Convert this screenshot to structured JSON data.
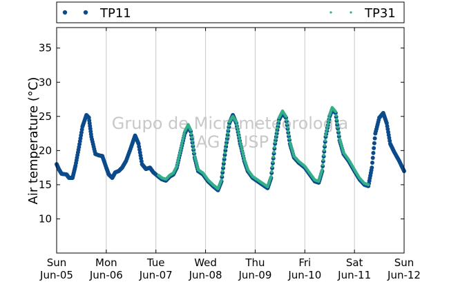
{
  "chart_data": {
    "type": "scatter",
    "title": "",
    "xlabel": "",
    "ylabel": "Air temperature (°C)",
    "ylim": [
      5,
      38
    ],
    "xlim": [
      0,
      7
    ],
    "x_unit": "days from Sun Jun-05 00:00",
    "yticks": [
      10,
      15,
      20,
      25,
      30,
      35
    ],
    "xticks": [
      {
        "x": 0,
        "day": "Sun",
        "date": "Jun-05"
      },
      {
        "x": 1,
        "day": "Mon",
        "date": "Jun-06"
      },
      {
        "x": 2,
        "day": "Tue",
        "date": "Jun-07"
      },
      {
        "x": 3,
        "day": "Wed",
        "date": "Jun-08"
      },
      {
        "x": 4,
        "day": "Thu",
        "date": "Jun-09"
      },
      {
        "x": 5,
        "day": "Fri",
        "date": "Jun-10"
      },
      {
        "x": 6,
        "day": "Sat",
        "date": "Jun-11"
      },
      {
        "x": 7,
        "day": "Sun",
        "date": "Jun-12"
      }
    ],
    "grid": "vertical",
    "legend_position": "top",
    "watermark": [
      "Grupo de Micrometeorologia",
      "IAG / USP"
    ],
    "series": [
      {
        "name": "TP11",
        "color": "#0b4a8b",
        "points": [
          [
            0.0,
            18.0
          ],
          [
            0.05,
            17.2
          ],
          [
            0.1,
            16.6
          ],
          [
            0.2,
            16.5
          ],
          [
            0.25,
            16.0
          ],
          [
            0.32,
            16.0
          ],
          [
            0.38,
            17.8
          ],
          [
            0.45,
            20.5
          ],
          [
            0.52,
            23.5
          ],
          [
            0.6,
            25.2
          ],
          [
            0.65,
            24.8
          ],
          [
            0.7,
            22.0
          ],
          [
            0.78,
            19.5
          ],
          [
            0.85,
            19.3
          ],
          [
            0.92,
            19.2
          ],
          [
            1.0,
            17.5
          ],
          [
            1.05,
            16.5
          ],
          [
            1.12,
            16.0
          ],
          [
            1.18,
            16.8
          ],
          [
            1.25,
            17.0
          ],
          [
            1.32,
            17.5
          ],
          [
            1.4,
            18.5
          ],
          [
            1.5,
            20.5
          ],
          [
            1.58,
            22.2
          ],
          [
            1.65,
            21.0
          ],
          [
            1.72,
            18.0
          ],
          [
            1.8,
            17.3
          ],
          [
            1.88,
            17.5
          ],
          [
            1.95,
            16.8
          ],
          [
            2.05,
            16.2
          ],
          [
            2.12,
            15.8
          ],
          [
            2.2,
            15.6
          ],
          [
            2.28,
            16.2
          ],
          [
            2.35,
            16.5
          ],
          [
            2.42,
            17.5
          ],
          [
            2.5,
            20.0
          ],
          [
            2.58,
            22.5
          ],
          [
            2.65,
            23.5
          ],
          [
            2.7,
            22.8
          ],
          [
            2.78,
            19.0
          ],
          [
            2.85,
            17.0
          ],
          [
            2.95,
            16.5
          ],
          [
            3.05,
            15.5
          ],
          [
            3.15,
            14.8
          ],
          [
            3.25,
            14.2
          ],
          [
            3.32,
            15.5
          ],
          [
            3.4,
            20.0
          ],
          [
            3.48,
            24.0
          ],
          [
            3.55,
            25.2
          ],
          [
            3.62,
            24.0
          ],
          [
            3.7,
            21.0
          ],
          [
            3.78,
            18.5
          ],
          [
            3.85,
            17.0
          ],
          [
            3.95,
            16.0
          ],
          [
            4.05,
            15.5
          ],
          [
            4.15,
            15.0
          ],
          [
            4.25,
            14.5
          ],
          [
            4.32,
            16.0
          ],
          [
            4.4,
            21.0
          ],
          [
            4.48,
            24.5
          ],
          [
            4.55,
            25.5
          ],
          [
            4.62,
            24.8
          ],
          [
            4.7,
            21.0
          ],
          [
            4.78,
            19.0
          ],
          [
            4.88,
            18.2
          ],
          [
            5.0,
            17.5
          ],
          [
            5.1,
            16.5
          ],
          [
            5.2,
            15.5
          ],
          [
            5.28,
            15.3
          ],
          [
            5.35,
            17.0
          ],
          [
            5.42,
            22.0
          ],
          [
            5.5,
            25.0
          ],
          [
            5.55,
            26.0
          ],
          [
            5.62,
            25.5
          ],
          [
            5.7,
            21.5
          ],
          [
            5.78,
            19.5
          ],
          [
            5.88,
            18.5
          ],
          [
            6.0,
            17.0
          ],
          [
            6.1,
            15.8
          ],
          [
            6.2,
            15.0
          ],
          [
            6.28,
            14.8
          ],
          [
            6.35,
            17.5
          ],
          [
            6.42,
            22.5
          ],
          [
            6.5,
            24.8
          ],
          [
            6.58,
            25.5
          ],
          [
            6.65,
            24.0
          ],
          [
            6.72,
            21.0
          ],
          [
            6.8,
            19.8
          ],
          [
            6.9,
            18.5
          ],
          [
            7.0,
            17.0
          ]
        ]
      },
      {
        "name": "TP31",
        "color": "#33b08a",
        "points": [
          [
            2.05,
            16.4
          ],
          [
            2.12,
            16.0
          ],
          [
            2.2,
            15.8
          ],
          [
            2.28,
            16.4
          ],
          [
            2.35,
            16.7
          ],
          [
            2.42,
            17.7
          ],
          [
            2.5,
            20.2
          ],
          [
            2.58,
            22.8
          ],
          [
            2.65,
            23.8
          ],
          [
            2.7,
            23.0
          ],
          [
            2.78,
            19.2
          ],
          [
            2.85,
            17.2
          ],
          [
            2.95,
            16.7
          ],
          [
            3.05,
            15.7
          ],
          [
            3.15,
            15.0
          ],
          [
            3.25,
            14.4
          ],
          [
            3.32,
            15.7
          ],
          [
            3.4,
            20.3
          ],
          [
            3.48,
            24.2
          ],
          [
            3.55,
            25.0
          ],
          [
            3.62,
            24.2
          ],
          [
            3.7,
            21.2
          ],
          [
            3.78,
            18.7
          ],
          [
            3.85,
            17.2
          ],
          [
            3.95,
            16.2
          ],
          [
            4.05,
            15.7
          ],
          [
            4.15,
            15.2
          ],
          [
            4.25,
            14.7
          ],
          [
            4.32,
            16.2
          ],
          [
            4.4,
            21.2
          ],
          [
            4.48,
            24.8
          ],
          [
            4.55,
            25.8
          ],
          [
            4.62,
            25.0
          ],
          [
            4.7,
            21.2
          ],
          [
            4.78,
            19.2
          ],
          [
            4.88,
            18.4
          ],
          [
            5.0,
            17.7
          ],
          [
            5.1,
            16.7
          ],
          [
            5.2,
            15.7
          ],
          [
            5.28,
            15.5
          ],
          [
            5.35,
            17.2
          ],
          [
            5.42,
            22.2
          ],
          [
            5.5,
            25.2
          ],
          [
            5.55,
            26.3
          ],
          [
            5.62,
            25.7
          ],
          [
            5.7,
            21.7
          ],
          [
            5.78,
            19.7
          ],
          [
            5.88,
            18.7
          ],
          [
            6.0,
            17.2
          ],
          [
            6.1,
            16.0
          ],
          [
            6.2,
            15.2
          ],
          [
            6.28,
            15.0
          ]
        ]
      }
    ]
  }
}
